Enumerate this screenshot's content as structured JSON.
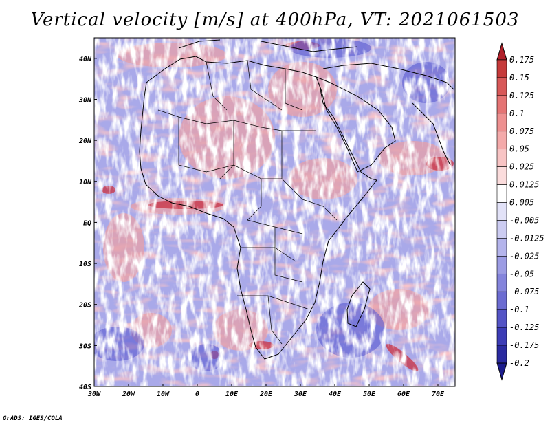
{
  "title": "Vertical velocity [m/s] at 400hPa, VT: 2021061503",
  "footer": "GrADS: IGES/COLA",
  "map": {
    "lon_range": [
      -30,
      75
    ],
    "lat_range": [
      -40,
      45
    ],
    "lon_ticks": [
      "30W",
      "20W",
      "10W",
      "0",
      "10E",
      "20E",
      "30E",
      "40E",
      "50E",
      "60E",
      "70E"
    ],
    "lat_ticks": [
      "40N",
      "30N",
      "20N",
      "10N",
      "EQ",
      "10S",
      "20S",
      "30S",
      "40S"
    ],
    "field": "vertical velocity",
    "palette": "blue-white-red"
  },
  "colorbar": {
    "labels": [
      "0.175",
      "0.15",
      "0.125",
      "0.1",
      "0.075",
      "0.05",
      "0.025",
      "0.0125",
      "0.005",
      "-0.005",
      "-0.0125",
      "-0.025",
      "-0.05",
      "-0.075",
      "-0.1",
      "-0.125",
      "-0.175",
      "-0.2"
    ],
    "colors": [
      "#b0202a",
      "#c63a3a",
      "#d85858",
      "#e57474",
      "#ee9090",
      "#f4aaaa",
      "#f8c4c4",
      "#fbdcdc",
      "#ffffff",
      "#e2e2f8",
      "#ccccf2",
      "#b4b4ec",
      "#9c9ce4",
      "#8484dc",
      "#6c6cd2",
      "#5454c6",
      "#3c3cb6",
      "#2a2aa0",
      "#1c1c8c"
    ]
  }
}
